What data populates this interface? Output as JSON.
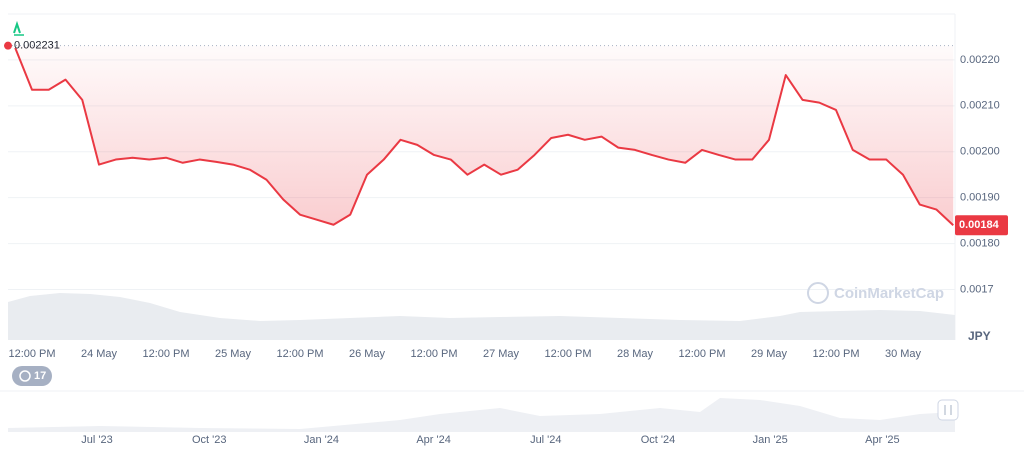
{
  "chart_data": {
    "type": "line",
    "color": "#ea3943",
    "categories": [
      null,
      "12:00 PM",
      null,
      null,
      null,
      "24 May",
      null,
      null,
      null,
      "12:00 PM",
      null,
      null,
      null,
      "25 May",
      null,
      null,
      null,
      "12:00 PM",
      null,
      null,
      null,
      "26 May",
      null,
      null,
      null,
      "12:00 PM",
      null,
      null,
      null,
      "27 May",
      null,
      null,
      null,
      "12:00 PM",
      null,
      null,
      null,
      "28 May",
      null,
      null,
      null,
      "12:00 PM",
      null,
      null,
      null,
      "29 May",
      null,
      null,
      null,
      "12:00 PM",
      null,
      null,
      null,
      "30 May",
      null,
      null,
      null
    ],
    "values": [
      0.002226,
      0.002135,
      0.002135,
      0.002157,
      0.002113,
      0.001972,
      0.001983,
      0.001987,
      0.001983,
      0.001987,
      0.001976,
      0.001983,
      0.001978,
      0.001972,
      0.001961,
      0.001939,
      0.001896,
      0.001863,
      0.001852,
      0.001841,
      0.001863,
      0.00195,
      0.001983,
      0.002026,
      0.002015,
      0.001993,
      0.001983,
      0.00195,
      0.001972,
      0.00195,
      0.001961,
      0.001993,
      0.00203,
      0.002037,
      0.002026,
      0.002033,
      0.002009,
      0.002004,
      0.001993,
      0.001983,
      0.001976,
      0.002004,
      0.001993,
      0.001983,
      0.001983,
      0.002026,
      0.002167,
      0.002113,
      0.002107,
      0.002091,
      0.002004,
      0.001983,
      0.001983,
      0.00195,
      0.001885,
      0.001874,
      0.00184
    ],
    "ylim": [
      0.00159,
      0.0023
    ],
    "yticks": [
      {
        "value": 0.0022,
        "label": "0.00220"
      },
      {
        "value": 0.0021,
        "label": "0.00210"
      },
      {
        "value": 0.002,
        "label": "0.00200"
      },
      {
        "value": 0.0019,
        "label": "0.00190"
      },
      {
        "value": 0.0018,
        "label": "0.00180"
      },
      0.0017
    ],
    "grid": true,
    "reference_value": 0.002231,
    "last_price": 0.00184,
    "currency": "JPY",
    "watermark": "CoinMarketCap",
    "badge_count": "17",
    "navigator_labels": [
      "Jul '23",
      "Oct '23",
      "Jan '24",
      "Apr '24",
      "Jul '24",
      "Oct '24",
      "Jan '25",
      "Apr '25"
    ]
  }
}
